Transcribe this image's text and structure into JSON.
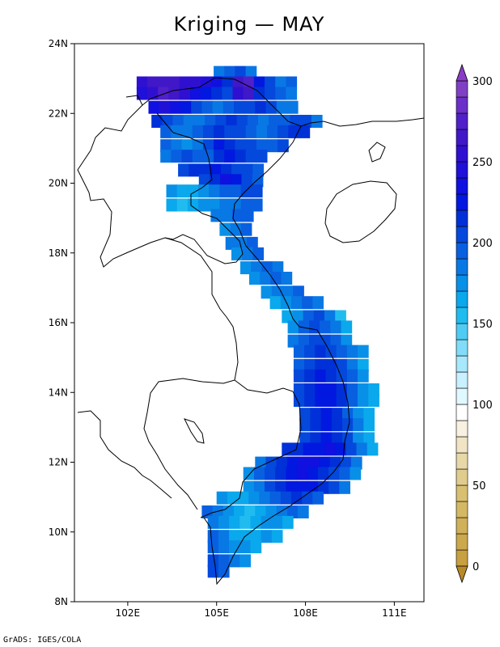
{
  "title": "Kriging — MAY",
  "footer": "GrADS: IGES/COLA",
  "map": {
    "lon_range": [
      100.2,
      112.0
    ],
    "lat_range": [
      8,
      24
    ],
    "lat_ticks": [
      {
        "value": 8,
        "label": "8N"
      },
      {
        "value": 10,
        "label": "10N"
      },
      {
        "value": 12,
        "label": "12N"
      },
      {
        "value": 14,
        "label": "14N"
      },
      {
        "value": 16,
        "label": "16N"
      },
      {
        "value": 18,
        "label": "18N"
      },
      {
        "value": 20,
        "label": "20N"
      },
      {
        "value": 22,
        "label": "22N"
      },
      {
        "value": 24,
        "label": "24N"
      }
    ],
    "lon_ticks": [
      {
        "value": 102,
        "label": "102E"
      },
      {
        "value": 105,
        "label": "105E"
      },
      {
        "value": 108,
        "label": "108E"
      },
      {
        "value": 111,
        "label": "111E"
      }
    ]
  },
  "colorbar": {
    "min": 0,
    "max": 300,
    "tick_labels": [
      {
        "value": 0,
        "label": "0"
      },
      {
        "value": 50,
        "label": "50"
      },
      {
        "value": 100,
        "label": "100"
      },
      {
        "value": 150,
        "label": "150"
      },
      {
        "value": 200,
        "label": "200"
      },
      {
        "value": 250,
        "label": "250"
      },
      {
        "value": 300,
        "label": "300"
      }
    ],
    "colors": [
      "#c8a040",
      "#cca84c",
      "#d0b058",
      "#d4b864",
      "#d8c070",
      "#e0cc8c",
      "#e8d8a8",
      "#f0e4c4",
      "#f8f0e0",
      "#ffffff",
      "#e0f8ff",
      "#c8f0ff",
      "#a8e8fc",
      "#80dcf8",
      "#50ccf4",
      "#20bcf0",
      "#0aa8ec",
      "#0890e8",
      "#0878e4",
      "#0860e0",
      "#0448dc",
      "#0030d8",
      "#0018e0",
      "#1010e0",
      "#2010d8",
      "#3010d0",
      "#4018c8",
      "#5020c8",
      "#6a30c8",
      "#8040c4"
    ],
    "under_color": "#b88a28",
    "over_color": "#8a3cc8"
  },
  "precipitation_grid": {
    "cell_deg": 0.36,
    "rows": [
      {
        "lat": 23.0,
        "lon0": 104.9,
        "values": [
          185,
          195,
          200,
          180
        ]
      },
      {
        "lat": 22.7,
        "lon0": 102.3,
        "values": [
          250,
          260,
          265,
          260,
          255,
          250,
          240,
          230,
          210,
          260,
          275,
          220,
          200,
          185,
          190
        ]
      },
      {
        "lat": 22.4,
        "lon0": 102.3,
        "values": [
          240,
          255,
          270,
          265,
          250,
          235,
          220,
          210,
          205,
          250,
          260,
          215,
          200,
          190,
          185
        ]
      },
      {
        "lat": 22.0,
        "lon0": 102.7,
        "values": [
          230,
          240,
          235,
          220,
          205,
          190,
          185,
          195,
          200,
          205,
          210,
          200,
          185,
          180
        ]
      },
      {
        "lat": 21.6,
        "lon0": 102.8,
        "values": [
          215,
          200,
          190,
          180,
          185,
          195,
          205,
          210,
          200,
          190,
          185,
          190,
          195,
          200,
          205,
          185
        ]
      },
      {
        "lat": 21.3,
        "lon0": 103.1,
        "values": [
          195,
          185,
          180,
          190,
          200,
          210,
          205,
          200,
          190,
          185,
          195,
          205,
          210,
          215
        ]
      },
      {
        "lat": 20.9,
        "lon0": 103.1,
        "values": [
          190,
          180,
          175,
          185,
          200,
          220,
          215,
          205,
          200,
          195,
          190,
          200
        ]
      },
      {
        "lat": 20.6,
        "lon0": 103.1,
        "values": [
          185,
          190,
          200,
          190,
          195,
          210,
          225,
          215,
          205,
          200
        ]
      },
      {
        "lat": 20.2,
        "lon0": 103.7,
        "values": [
          200,
          210,
          215,
          220,
          215,
          205,
          200,
          195
        ]
      },
      {
        "lat": 19.9,
        "lon0": 104.4,
        "values": [
          200,
          215,
          235,
          220,
          205,
          195
        ]
      },
      {
        "lat": 19.6,
        "lon0": 103.3,
        "values": [
          170,
          160,
          165,
          175,
          185,
          190,
          195,
          200,
          205
        ]
      },
      {
        "lat": 19.2,
        "lon0": 103.3,
        "values": [
          165,
          155,
          160,
          170,
          175,
          180,
          185,
          190,
          195
        ]
      },
      {
        "lat": 18.9,
        "lon0": 104.8,
        "values": [
          180,
          185,
          190,
          195
        ]
      },
      {
        "lat": 18.5,
        "lon0": 105.1,
        "values": [
          175,
          180,
          190
        ]
      },
      {
        "lat": 18.1,
        "lon0": 105.3,
        "values": [
          180,
          185,
          190
        ]
      },
      {
        "lat": 17.8,
        "lon0": 105.5,
        "values": [
          175,
          185,
          195
        ]
      },
      {
        "lat": 17.4,
        "lon0": 105.8,
        "values": [
          170,
          180,
          190,
          185
        ]
      },
      {
        "lat": 17.1,
        "lon0": 106.1,
        "values": [
          175,
          185,
          190,
          180
        ]
      },
      {
        "lat": 16.7,
        "lon0": 106.5,
        "values": [
          170,
          180,
          185,
          190
        ]
      },
      {
        "lat": 16.4,
        "lon0": 106.8,
        "values": [
          165,
          175,
          185,
          190,
          180
        ]
      },
      {
        "lat": 16.0,
        "lon0": 107.2,
        "values": [
          165,
          175,
          190,
          200,
          185,
          150
        ]
      },
      {
        "lat": 15.7,
        "lon0": 107.4,
        "values": [
          175,
          190,
          200,
          195,
          180,
          165
        ]
      },
      {
        "lat": 15.3,
        "lon0": 107.4,
        "values": [
          180,
          195,
          205,
          200,
          190,
          175
        ]
      },
      {
        "lat": 15.0,
        "lon0": 107.6,
        "values": [
          190,
          200,
          210,
          205,
          195,
          180,
          170
        ]
      },
      {
        "lat": 14.6,
        "lon0": 107.6,
        "values": [
          195,
          205,
          215,
          210,
          200,
          185,
          165
        ]
      },
      {
        "lat": 14.3,
        "lon0": 107.6,
        "values": [
          200,
          210,
          220,
          215,
          205,
          190,
          170
        ]
      },
      {
        "lat": 13.9,
        "lon0": 107.6,
        "values": [
          205,
          215,
          225,
          220,
          210,
          195,
          175,
          160
        ]
      },
      {
        "lat": 13.6,
        "lon0": 107.6,
        "values": [
          200,
          210,
          220,
          225,
          215,
          195,
          175,
          160
        ]
      },
      {
        "lat": 13.2,
        "lon0": 107.8,
        "values": [
          205,
          215,
          220,
          210,
          195,
          175,
          160
        ]
      },
      {
        "lat": 12.9,
        "lon0": 107.8,
        "values": [
          200,
          210,
          220,
          215,
          200,
          180,
          165
        ]
      },
      {
        "lat": 12.5,
        "lon0": 107.8,
        "values": [
          205,
          215,
          225,
          215,
          200,
          175,
          160
        ]
      },
      {
        "lat": 12.2,
        "lon0": 107.2,
        "values": [
          210,
          215,
          220,
          225,
          230,
          220,
          205,
          180,
          165
        ]
      },
      {
        "lat": 11.8,
        "lon0": 106.3,
        "values": [
          180,
          200,
          215,
          225,
          230,
          230,
          225,
          215,
          200,
          180
        ]
      },
      {
        "lat": 11.5,
        "lon0": 105.9,
        "values": [
          175,
          190,
          205,
          215,
          225,
          230,
          225,
          215,
          205,
          190,
          170
        ]
      },
      {
        "lat": 11.1,
        "lon0": 105.9,
        "values": [
          170,
          185,
          200,
          210,
          220,
          225,
          220,
          210,
          200,
          185
        ]
      },
      {
        "lat": 10.8,
        "lon0": 105.0,
        "values": [
          175,
          165,
          160,
          170,
          185,
          195,
          205,
          210,
          205,
          195
        ]
      },
      {
        "lat": 10.4,
        "lon0": 104.5,
        "values": [
          195,
          185,
          170,
          160,
          155,
          165,
          175,
          185,
          190,
          180
        ]
      },
      {
        "lat": 10.1,
        "lon0": 104.7,
        "values": [
          185,
          170,
          160,
          155,
          160,
          170,
          175,
          165
        ]
      },
      {
        "lat": 9.7,
        "lon0": 104.7,
        "values": [
          190,
          180,
          165,
          160,
          165,
          170,
          160
        ]
      },
      {
        "lat": 9.4,
        "lon0": 104.7,
        "values": [
          195,
          185,
          175,
          170,
          165
        ]
      },
      {
        "lat": 9.0,
        "lon0": 104.7,
        "values": [
          200,
          190,
          180,
          175
        ]
      },
      {
        "lat": 8.7,
        "lon0": 104.7,
        "values": [
          205,
          195
        ]
      }
    ]
  }
}
